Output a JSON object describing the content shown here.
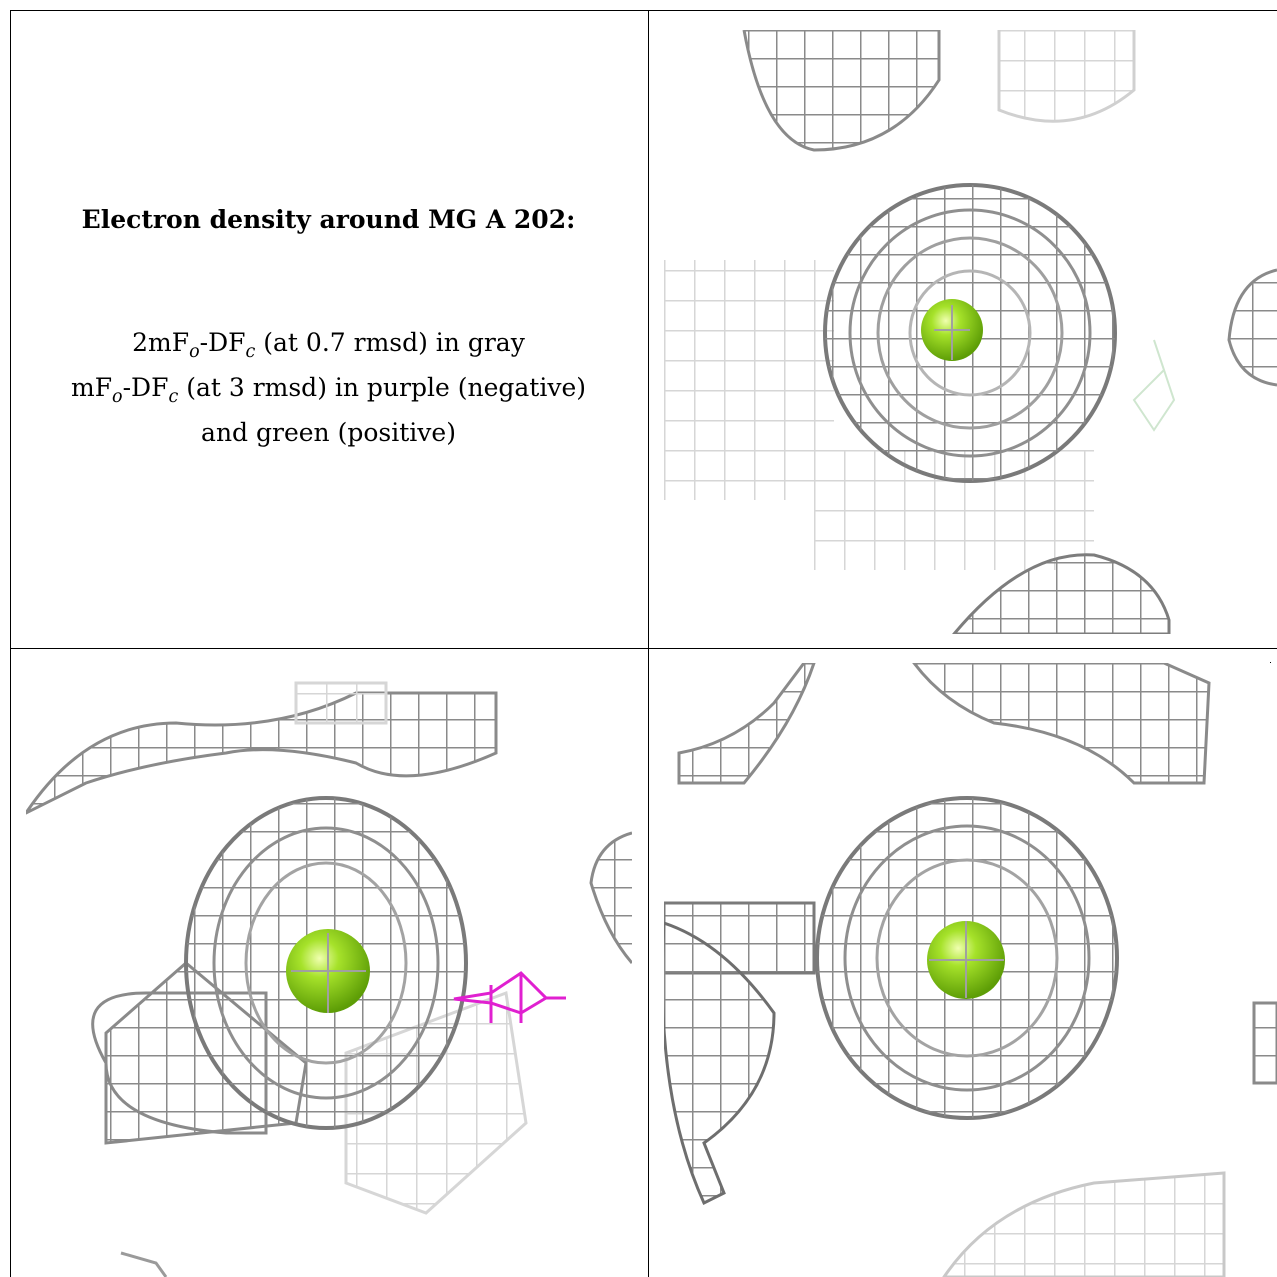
{
  "caption": {
    "title": "Electron density around MG A 202:",
    "line1": {
      "pre": "2mF",
      "sub1": "o",
      "mid": "-DF",
      "sub2": "c",
      "post": " (at 0.7 rmsd) in gray"
    },
    "line2": {
      "pre": "mF",
      "sub1": "o",
      "mid": "-DF",
      "sub2": "c",
      "post": " (at 3 rmsd) in purple (negative)"
    },
    "line3": "and green (positive)"
  },
  "colors": {
    "mesh_gray": "#8a8a8a",
    "mesh_light": "#d0d0d0",
    "ion_green": "#8fd11e",
    "negative_purple": "#e020d0",
    "positive_green": "#b8e0b8"
  },
  "icons": [
    "mg-ion-sphere",
    "density-mesh",
    "negative-density-mesh",
    "positive-density-mesh"
  ]
}
